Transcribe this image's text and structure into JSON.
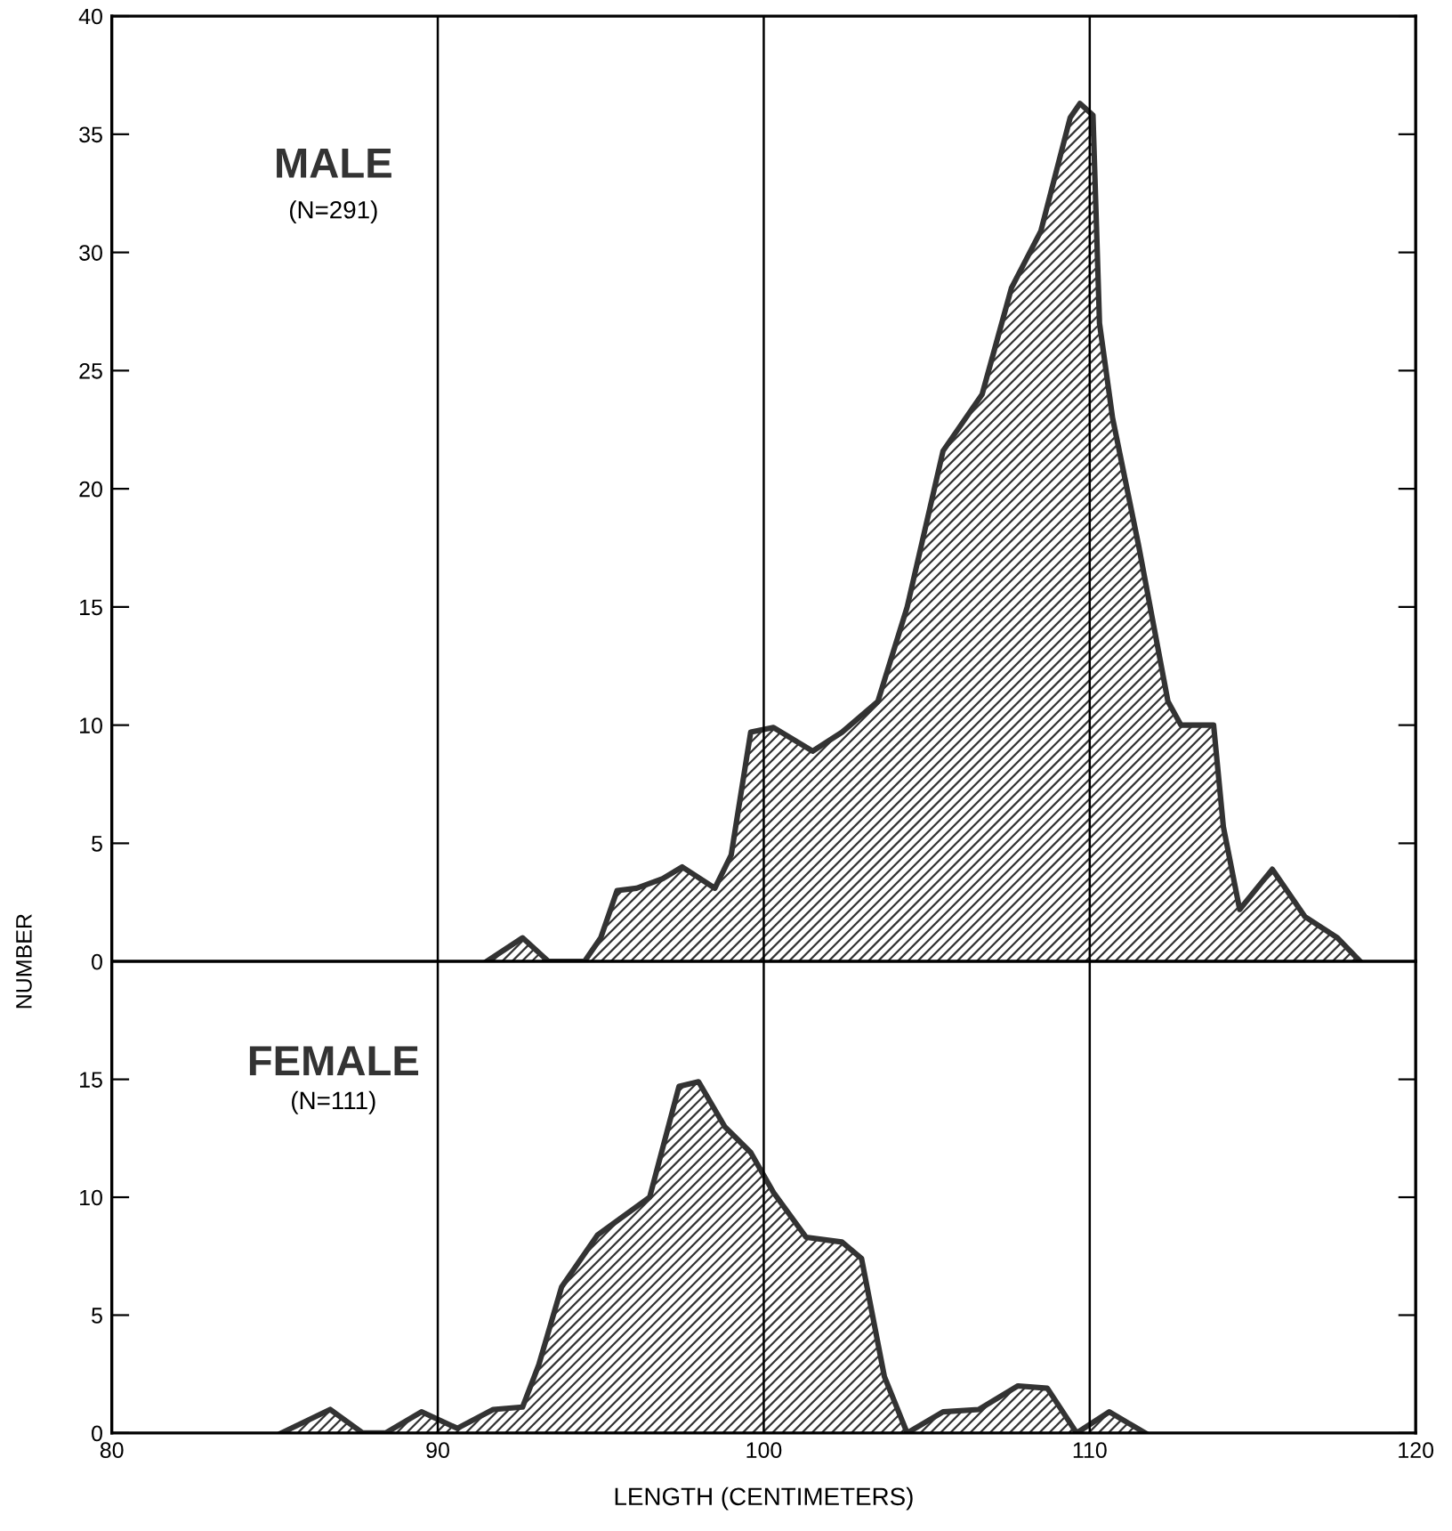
{
  "chart_data": [
    {
      "type": "area",
      "ylabel": "NUMBER",
      "annotations": [
        "(N=291)"
      ],
      "tick_labels": "y",
      "grid": "x",
      "legend": false,
      "xlim": [
        80,
        120
      ],
      "xticks": [
        80,
        90,
        100,
        110,
        120
      ],
      "ylim": [
        0,
        40
      ],
      "yticks": [
        0,
        5,
        10,
        15,
        20,
        25,
        30,
        35,
        40
      ],
      "series": [
        {
          "name": "MALE",
          "color": "#333333",
          "x": [
            91.5,
            92.6,
            93.4,
            94.5,
            95.0,
            95.5,
            96.1,
            96.9,
            97.5,
            98.5,
            99.0,
            99.6,
            100.3,
            101.5,
            102.4,
            103.5,
            104.4,
            105.5,
            105.9,
            106.7,
            107.6,
            108.5,
            109.4,
            109.7,
            110.1,
            110.3,
            110.7,
            111.5,
            112.4,
            112.8,
            113.8,
            114.1,
            114.6,
            115.6,
            116.6,
            117.6,
            118.3
          ],
          "values": [
            0,
            1,
            0,
            0,
            1,
            3,
            3.1,
            3.5,
            4,
            3.1,
            4.5,
            9.7,
            9.9,
            8.9,
            9.7,
            11,
            15,
            21.6,
            22.4,
            24,
            28.5,
            30.9,
            35.7,
            36.3,
            35.8,
            27,
            23,
            17.6,
            11,
            10,
            10,
            5.7,
            2.2,
            3.9,
            1.9,
            1,
            0
          ]
        }
      ]
    },
    {
      "type": "area",
      "xlabel": "LENGTH (CENTIMETERS)",
      "annotations": [
        "(N=111)"
      ],
      "grid": "x",
      "legend": false,
      "xlim": [
        80,
        120
      ],
      "xticks": [
        80,
        90,
        100,
        110,
        120
      ],
      "ylim": [
        0,
        20
      ],
      "yticks": [
        0,
        5,
        10,
        15
      ],
      "series": [
        {
          "name": "FEMALE",
          "color": "#333333",
          "x": [
            85.2,
            86.7,
            87.7,
            88.4,
            89.5,
            90.6,
            91.7,
            92.6,
            93.1,
            93.8,
            94.9,
            96.5,
            97.4,
            98.0,
            98.8,
            99.6,
            100.3,
            101.3,
            102.4,
            103.0,
            103.7,
            104.4,
            105.5,
            106.6,
            107.8,
            108.7,
            109.6,
            110.6,
            111.7
          ],
          "values": [
            0,
            1,
            0,
            0,
            0.9,
            0.2,
            1,
            1.1,
            2.9,
            6.2,
            8.4,
            10,
            14.7,
            14.9,
            13,
            11.9,
            10.2,
            8.3,
            8.1,
            7.4,
            2.4,
            0,
            0.9,
            1,
            2,
            1.9,
            0,
            0.9,
            0
          ]
        }
      ]
    }
  ]
}
